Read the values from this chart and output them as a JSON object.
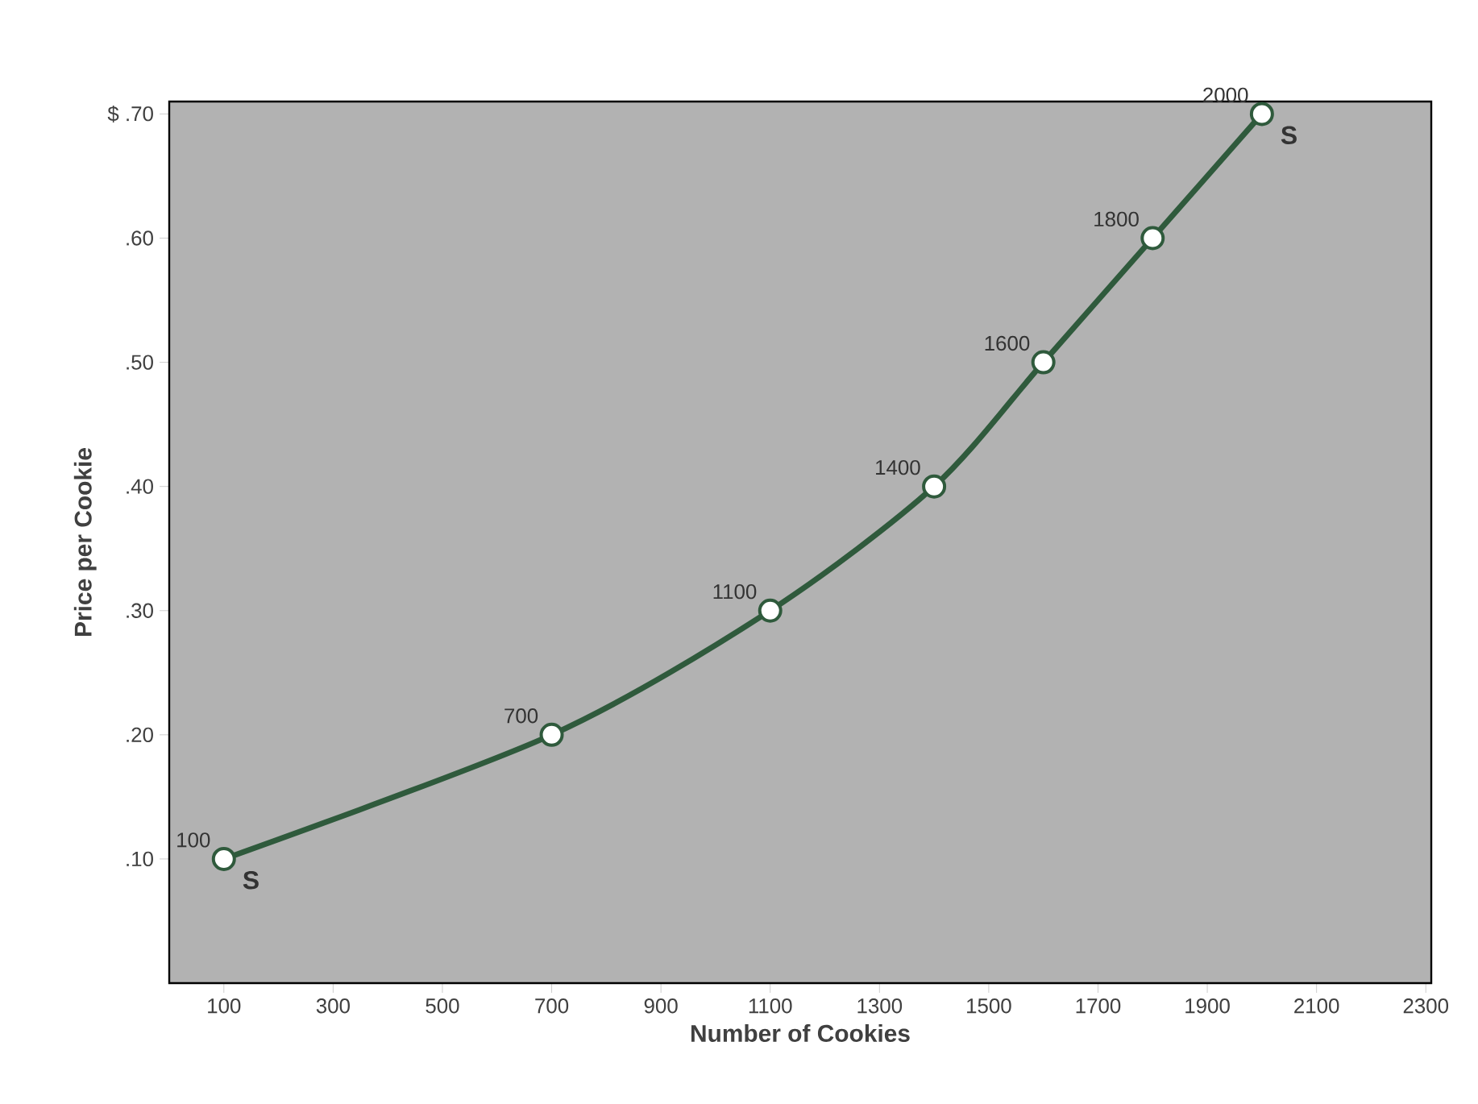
{
  "chart_data": {
    "type": "line",
    "xlabel": "Number of Cookies",
    "ylabel": "Price per Cookie",
    "x": [
      100,
      700,
      1100,
      1400,
      1600,
      1800,
      2000
    ],
    "values": [
      0.1,
      0.2,
      0.3,
      0.4,
      0.5,
      0.6,
      0.7
    ],
    "color": "#2f5a3c",
    "marker": "circle",
    "line_style": "solid",
    "xlim": [
      0,
      2310
    ],
    "ylim": [
      0,
      0.71
    ],
    "xticks": [
      100,
      300,
      500,
      700,
      900,
      1100,
      1300,
      1500,
      1700,
      1900,
      2100,
      2300
    ],
    "yticks": [
      {
        "value": 0.1,
        "label": ".10"
      },
      {
        "value": 0.2,
        "label": ".20"
      },
      {
        "value": 0.3,
        "label": ".30"
      },
      {
        "value": 0.4,
        "label": ".40"
      },
      {
        "value": 0.5,
        "label": ".50"
      },
      {
        "value": 0.6,
        "label": ".60"
      },
      {
        "value": 0.7,
        "label": "$ .70"
      }
    ],
    "annotations": [
      {
        "text": "100",
        "x": 100,
        "y": 0.1
      },
      {
        "text": "700",
        "x": 700,
        "y": 0.2
      },
      {
        "text": "1100",
        "x": 1100,
        "y": 0.3
      },
      {
        "text": "1400",
        "x": 1400,
        "y": 0.4
      },
      {
        "text": "1600",
        "x": 1600,
        "y": 0.5
      },
      {
        "text": "1800",
        "x": 1800,
        "y": 0.6
      },
      {
        "text": "2000",
        "x": 2000,
        "y": 0.7
      },
      {
        "text": "S",
        "x": 100,
        "y": 0.1
      },
      {
        "text": "S",
        "x": 2000,
        "y": 0.7
      }
    ]
  }
}
